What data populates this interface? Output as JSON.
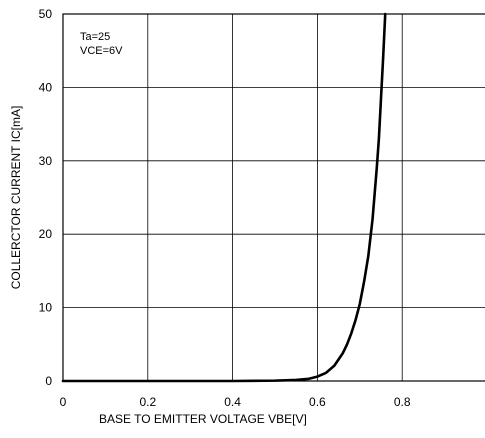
{
  "chart_data": {
    "type": "line",
    "title": "",
    "xlabel": "BASE TO EMITTER VOLTAGE VBE[V]",
    "ylabel": "COLLERCTOR CURRENT IC[mA]",
    "xlim": [
      0,
      1.0
    ],
    "ylim": [
      0,
      50
    ],
    "xticks": [
      0,
      0.2,
      0.4,
      0.6,
      0.8
    ],
    "xtick_labels": [
      "0",
      "0.2",
      "0.4",
      "0.6",
      "0.8"
    ],
    "yticks": [
      0,
      10,
      20,
      30,
      40,
      50
    ],
    "ytick_labels": [
      "0",
      "10",
      "20",
      "30",
      "40",
      "50"
    ],
    "grid": true,
    "annotations": [
      "Ta=25",
      "VCE=6V"
    ],
    "series": [
      {
        "x": [
          0.0,
          0.2,
          0.4,
          0.5,
          0.55,
          0.58,
          0.6,
          0.62,
          0.64,
          0.66,
          0.67,
          0.68,
          0.69,
          0.7,
          0.71,
          0.72,
          0.73,
          0.74,
          0.745,
          0.75,
          0.755,
          0.76
        ],
        "y": [
          0.0,
          0.0,
          0.0,
          0.05,
          0.15,
          0.3,
          0.6,
          1.1,
          2.1,
          3.8,
          5.0,
          6.5,
          8.3,
          10.5,
          13.5,
          17.0,
          22.0,
          29.0,
          33.0,
          38.5,
          44.0,
          50.0
        ]
      }
    ]
  }
}
